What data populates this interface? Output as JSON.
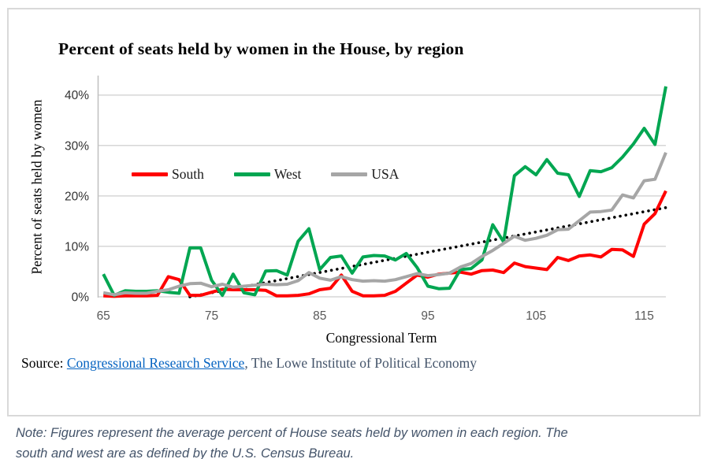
{
  "title": "Percent of seats held by women in the House, by region",
  "legend": {
    "items": [
      {
        "label": "South",
        "color": "#FF0000"
      },
      {
        "label": "West",
        "color": "#00A651"
      },
      {
        "label": "USA",
        "color": "#A6A6A6"
      }
    ]
  },
  "source": {
    "prefix": "Source: ",
    "link_text": "Congressional Research Service",
    "suffix": ", The Lowe Institute of Political Economy"
  },
  "note": {
    "line1": "Note: Figures represent the average percent of House seats held by women in each region. The",
    "line2": "south and west are as defined by the U.S. Census Bureau."
  },
  "chart_data": {
    "type": "line",
    "title": "Percent of seats held by women in the House, by region",
    "xlabel": "Congressional Term",
    "ylabel": "Percent of seats held by women",
    "xlim": [
      64.5,
      117.5
    ],
    "ylim": [
      0,
      44
    ],
    "grid": "horizontal",
    "legend_position": "inside-upper-left",
    "x_ticks": [
      65,
      75,
      85,
      95,
      105,
      115
    ],
    "y_ticks": [
      {
        "value": 0,
        "label": "0%"
      },
      {
        "value": 10,
        "label": "10%"
      },
      {
        "value": 20,
        "label": "20%"
      },
      {
        "value": 30,
        "label": "30%"
      },
      {
        "value": 40,
        "label": "40%"
      }
    ],
    "x": [
      65,
      66,
      67,
      68,
      69,
      70,
      71,
      72,
      73,
      74,
      75,
      76,
      77,
      78,
      79,
      80,
      81,
      82,
      83,
      84,
      85,
      86,
      87,
      88,
      89,
      90,
      91,
      92,
      93,
      94,
      95,
      96,
      97,
      98,
      99,
      100,
      101,
      102,
      103,
      104,
      105,
      106,
      107,
      108,
      109,
      110,
      111,
      112,
      113,
      114,
      115,
      116,
      117
    ],
    "series": [
      {
        "name": "South",
        "color": "#FF0000",
        "values": [
          0.2,
          0.1,
          0.2,
          0.2,
          0.2,
          0.3,
          4.0,
          3.4,
          0.3,
          0.3,
          0.9,
          1.5,
          1.4,
          1.4,
          1.4,
          1.3,
          0.2,
          0.2,
          0.3,
          0.6,
          1.4,
          1.7,
          4.3,
          1.1,
          0.2,
          0.2,
          0.3,
          1.1,
          2.7,
          4.3,
          3.9,
          4.5,
          4.7,
          4.9,
          4.5,
          5.2,
          5.3,
          4.8,
          6.7,
          6.0,
          5.7,
          5.4,
          7.8,
          7.2,
          8.1,
          8.3,
          7.9,
          9.4,
          9.3,
          8.0,
          14.4,
          16.5,
          21.0
        ]
      },
      {
        "name": "West",
        "color": "#00A651",
        "values": [
          4.5,
          0.3,
          1.2,
          1.1,
          1.1,
          1.2,
          0.9,
          0.7,
          9.7,
          9.7,
          3.3,
          0.3,
          4.5,
          0.8,
          0.4,
          5.1,
          5.2,
          4.3,
          11.0,
          13.5,
          5.4,
          7.8,
          8.1,
          4.7,
          7.9,
          8.2,
          8.1,
          7.3,
          8.6,
          5.8,
          2.1,
          1.6,
          1.7,
          5.4,
          5.6,
          7.3,
          14.3,
          10.9,
          24.0,
          25.8,
          24.2,
          27.2,
          24.5,
          24.2,
          19.9,
          25.0,
          24.8,
          25.6,
          27.7,
          30.3,
          33.4,
          30.2,
          41.7
        ]
      },
      {
        "name": "USA",
        "color": "#A6A6A6",
        "values": [
          0.8,
          0.4,
          0.8,
          0.7,
          0.7,
          1.1,
          1.4,
          2.1,
          2.6,
          2.7,
          2.0,
          2.5,
          1.9,
          2.1,
          2.3,
          2.5,
          2.4,
          2.5,
          3.2,
          4.8,
          3.7,
          3.3,
          4.0,
          3.4,
          3.1,
          3.2,
          3.1,
          3.4,
          4.0,
          4.6,
          4.2,
          4.4,
          4.7,
          5.9,
          6.6,
          8.0,
          9.2,
          10.6,
          12.0,
          11.2,
          11.6,
          12.2,
          13.3,
          13.4,
          15.1,
          16.8,
          16.9,
          17.2,
          20.2,
          19.6,
          23.0,
          23.3,
          28.6
        ]
      }
    ],
    "trendline": {
      "style": "dotted",
      "color": "#000000",
      "x_start": 73,
      "y_start": 0.0,
      "x_end": 117.3,
      "y_end": 17.8
    }
  }
}
